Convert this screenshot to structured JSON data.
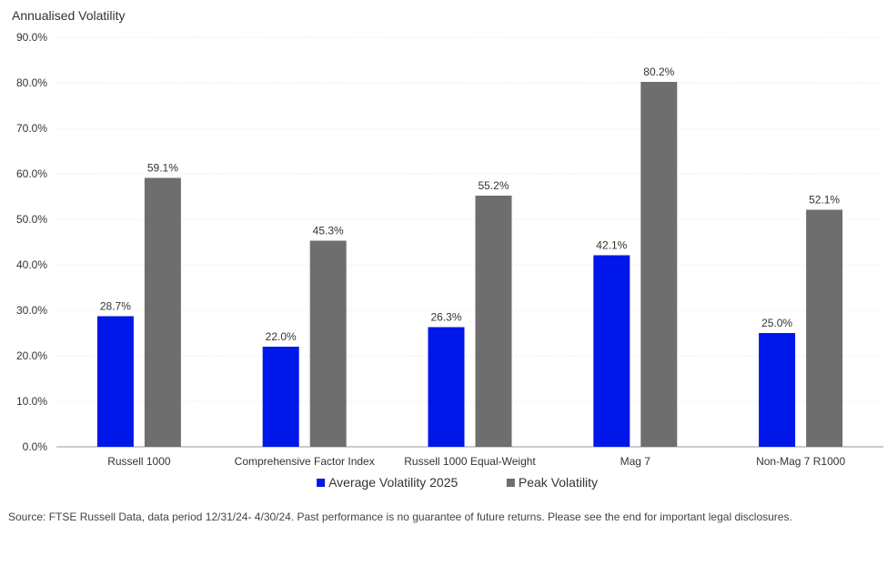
{
  "chart_data": {
    "type": "bar",
    "title": "Annualised Volatility",
    "categories": [
      "Russell 1000",
      "Comprehensive Factor Index",
      "Russell 1000 Equal-Weight",
      "Mag 7",
      "Non-Mag 7 R1000"
    ],
    "series": [
      {
        "name": "Average Volatility 2025",
        "color": "#0017ea",
        "values": [
          28.7,
          22.0,
          26.3,
          42.1,
          25.0
        ],
        "labels": [
          "28.7%",
          "22.0%",
          "26.3%",
          "42.1%",
          "25.0%"
        ]
      },
      {
        "name": "Peak Volatility",
        "color": "#6e6e6e",
        "values": [
          59.1,
          45.3,
          55.2,
          80.2,
          52.1
        ],
        "labels": [
          "59.1%",
          "45.3%",
          "55.2%",
          "80.2%",
          "52.1%"
        ]
      }
    ],
    "ylim": [
      0,
      90
    ],
    "yticks": [
      0,
      10,
      20,
      30,
      40,
      50,
      60,
      70,
      80,
      90
    ],
    "ytick_labels": [
      "0.0%",
      "10.0%",
      "20.0%",
      "30.0%",
      "40.0%",
      "50.0%",
      "60.0%",
      "70.0%",
      "80.0%",
      "90.0%"
    ],
    "grid": true,
    "legend": "bottom-center"
  },
  "source_note": "Source: FTSE Russell Data, data period 12/31/24- 4/30/24. Past performance is no guarantee of future returns. Please see the end for important legal disclosures."
}
